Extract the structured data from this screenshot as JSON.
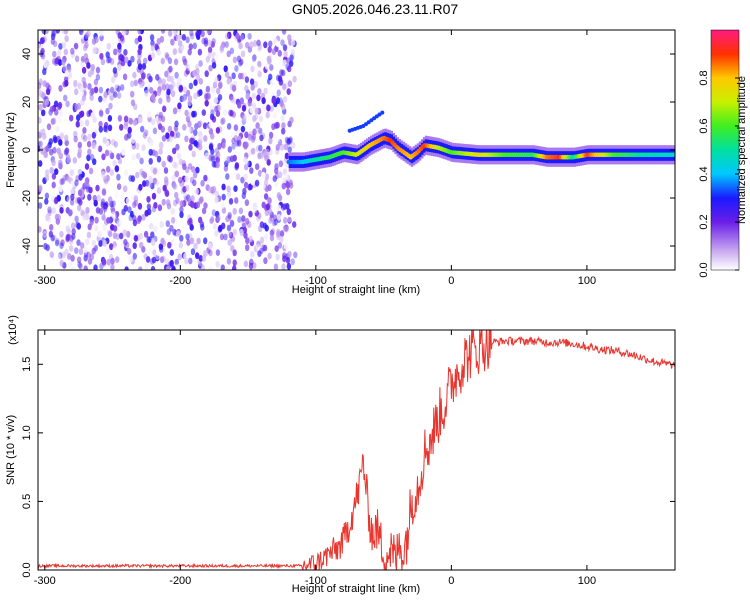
{
  "title": "GN05.2026.046.23.11.R07",
  "chart_data": [
    {
      "type": "heatmap",
      "xlabel": "Height of straight line (km)",
      "ylabel": "Frequency (Hz)",
      "xlim": [
        -305,
        165
      ],
      "ylim": [
        -50,
        50
      ],
      "xticks": [
        -300,
        -200,
        -100,
        0,
        100
      ],
      "yticks": [
        -40,
        -20,
        0,
        20,
        40
      ],
      "noise_region": {
        "x_from": -305,
        "x_to": -115,
        "amplitude_range": [
          0.0,
          0.3
        ]
      },
      "ridge": {
        "x": [
          -120,
          -110,
          -100,
          -90,
          -80,
          -70,
          -60,
          -50,
          -45,
          -40,
          -30,
          -25,
          -20,
          -10,
          0,
          20,
          40,
          60,
          70,
          80,
          90,
          100,
          120,
          140,
          165
        ],
        "freq": [
          -5,
          -5,
          -4,
          -3,
          -1,
          -2,
          2,
          5,
          4,
          1,
          -3,
          -1,
          2,
          1,
          -1,
          -2,
          -2,
          -2,
          -3,
          -3,
          -3,
          -2,
          -2,
          -2,
          -2
        ],
        "amplitude": [
          0.35,
          0.4,
          0.5,
          0.55,
          0.6,
          0.7,
          0.8,
          0.85,
          0.9,
          0.85,
          0.8,
          0.85,
          0.9,
          0.7,
          0.6,
          0.75,
          0.6,
          0.55,
          0.85,
          0.9,
          0.5,
          0.9,
          0.6,
          0.5,
          0.45
        ]
      },
      "secondary_ridge": {
        "x": [
          -75,
          -65,
          -55,
          -50
        ],
        "freq": [
          8,
          10,
          14,
          16
        ]
      },
      "colorbar": {
        "label": "Normalized spectral amplitude",
        "range": [
          0.0,
          1.0
        ],
        "ticks": [
          "0.0",
          "0.2",
          "0.4",
          "0.6",
          "0.8"
        ]
      }
    },
    {
      "type": "line",
      "xlabel": "Height of straight line (km)",
      "ylabel": "SNR (10 * v/v)",
      "multiplier_label": "(x10⁴)",
      "xlim": [
        -305,
        165
      ],
      "ylim": [
        0,
        1.75
      ],
      "xticks": [
        -300,
        -200,
        -100,
        0,
        100
      ],
      "yticks": [
        "0.0",
        "0.5",
        "1.0",
        "1.5"
      ],
      "color": "#e8352e",
      "series": [
        {
          "name": "SNR",
          "x": [
            -305,
            -280,
            -250,
            -200,
            -150,
            -120,
            -110,
            -100,
            -95,
            -90,
            -85,
            -80,
            -75,
            -72,
            -68,
            -65,
            -62,
            -60,
            -58,
            -55,
            -52,
            -50,
            -48,
            -45,
            -42,
            -40,
            -38,
            -35,
            -32,
            -30,
            -28,
            -25,
            -22,
            -20,
            -18,
            -15,
            -12,
            -10,
            -8,
            -5,
            -2,
            0,
            2,
            5,
            8,
            10,
            12,
            15,
            18,
            20,
            25,
            30,
            40,
            50,
            60,
            70,
            80,
            90,
            95,
            100,
            105,
            110,
            120,
            130,
            140,
            150,
            165
          ],
          "values": [
            0.03,
            0.03,
            0.03,
            0.03,
            0.03,
            0.03,
            0.03,
            0.05,
            0.08,
            0.12,
            0.15,
            0.2,
            0.35,
            0.45,
            0.6,
            0.8,
            0.5,
            0.35,
            0.25,
            0.3,
            0.2,
            0.15,
            0.1,
            0.15,
            0.08,
            0.1,
            0.2,
            0.12,
            0.3,
            0.45,
            0.55,
            0.6,
            0.75,
            0.85,
            0.9,
            0.95,
            1.05,
            1.1,
            1.15,
            1.2,
            1.3,
            1.35,
            1.4,
            1.45,
            1.5,
            1.55,
            1.55,
            1.6,
            1.6,
            1.62,
            1.65,
            1.66,
            1.67,
            1.67,
            1.67,
            1.66,
            1.66,
            1.65,
            1.64,
            1.63,
            1.62,
            1.61,
            1.6,
            1.58,
            1.55,
            1.52,
            1.49
          ]
        }
      ]
    }
  ]
}
